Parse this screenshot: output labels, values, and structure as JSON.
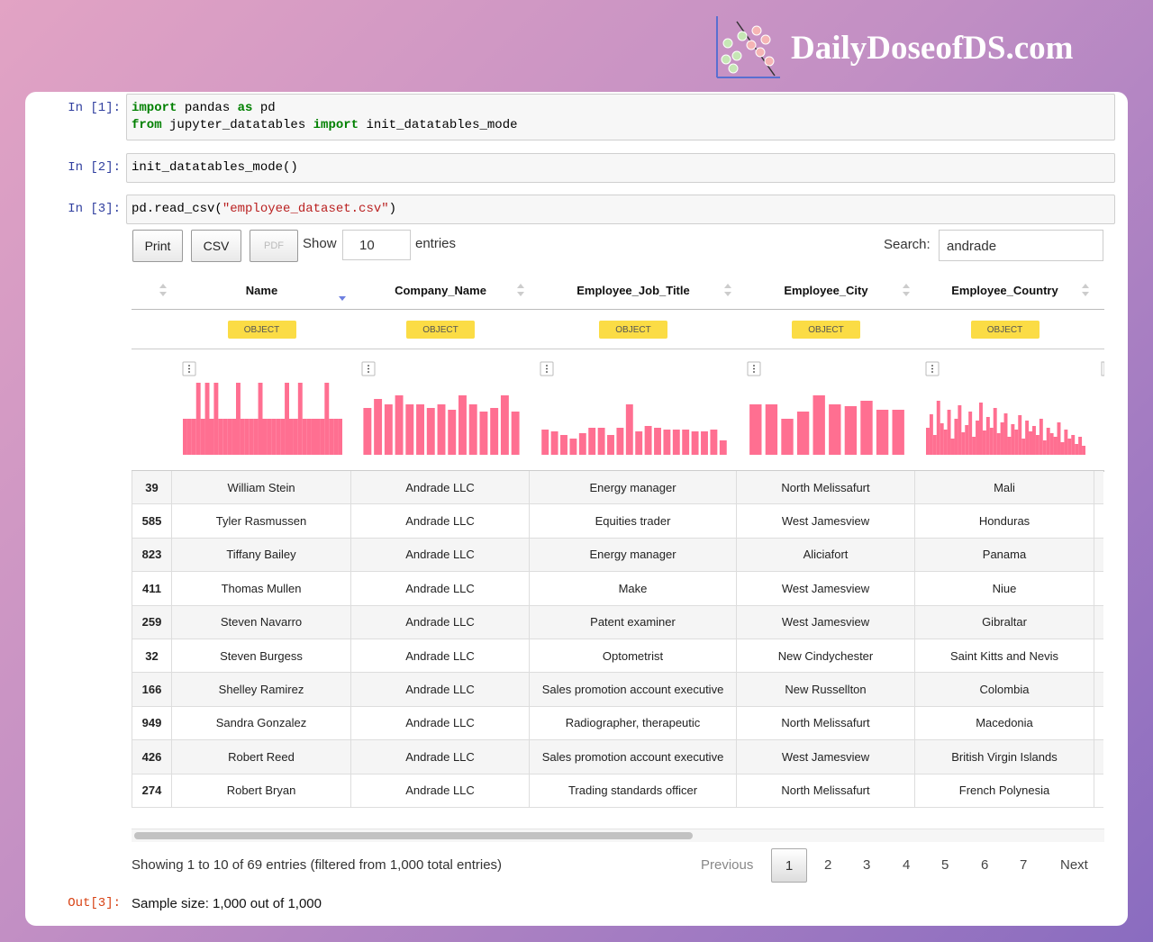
{
  "brand": "DailyDoseofDS.com",
  "cells": [
    {
      "prompt": "In [1]:",
      "lines": [
        [
          {
            "text": "import",
            "style": "keyword"
          },
          {
            "text": " pandas ",
            "style": "plain"
          },
          {
            "text": "as",
            "style": "keyword"
          },
          {
            "text": " pd",
            "style": "plain"
          }
        ],
        [
          {
            "text": "from",
            "style": "keyword"
          },
          {
            "text": " jupyter_datatables ",
            "style": "plain"
          },
          {
            "text": "import",
            "style": "keyword"
          },
          {
            "text": " init_datatables_mode",
            "style": "plain"
          }
        ]
      ]
    },
    {
      "prompt": "In [2]:",
      "lines": [
        [
          {
            "text": "init_datatables_mode()",
            "style": "plain"
          }
        ]
      ]
    },
    {
      "prompt": "In [3]:",
      "lines": [
        [
          {
            "text": "pd.read_csv(",
            "style": "plain"
          },
          {
            "text": "\"employee_dataset.csv\"",
            "style": "string"
          },
          {
            "text": ")",
            "style": "plain"
          }
        ]
      ]
    }
  ],
  "toolbar": {
    "buttons": [
      "Print",
      "CSV",
      "PDF"
    ],
    "show_label": "Show",
    "page_length": "10",
    "entries_label": "entries",
    "search_label": "Search:",
    "search_value": "andrade"
  },
  "table": {
    "columns": [
      "Name",
      "Company_Name",
      "Employee_Job_Title",
      "Employee_City",
      "Employee_Country"
    ],
    "dtypes": [
      "OBJECT",
      "OBJECT",
      "OBJECT",
      "OBJECT",
      "OBJECT"
    ],
    "histograms": [
      [
        40,
        40,
        40,
        80,
        40,
        80,
        40,
        80,
        40,
        40,
        40,
        40,
        80,
        40,
        40,
        40,
        40,
        80,
        40,
        40,
        40,
        40,
        40,
        80,
        40,
        40,
        80,
        40,
        40,
        40,
        40,
        40,
        80,
        40,
        40,
        40
      ],
      [
        52,
        62,
        56,
        66,
        56,
        56,
        52,
        56,
        50,
        66,
        56,
        48,
        52,
        66,
        48
      ],
      [
        28,
        26,
        22,
        18,
        24,
        30,
        30,
        22,
        30,
        56,
        26,
        32,
        30,
        28,
        28,
        28,
        26,
        26,
        28,
        16
      ],
      [
        56,
        56,
        40,
        48,
        66,
        56,
        54,
        60,
        50,
        50
      ],
      [
        30,
        45,
        22,
        60,
        35,
        28,
        50,
        18,
        40,
        55,
        25,
        33,
        48,
        20,
        38,
        58,
        27,
        42,
        30,
        52,
        24,
        36,
        46,
        20,
        34,
        28,
        44,
        18,
        38,
        26,
        32,
        22,
        40,
        16,
        30,
        24,
        20,
        36,
        14,
        28,
        18,
        22,
        12,
        20,
        10
      ]
    ],
    "rows": [
      [
        39,
        "William Stein",
        "Andrade LLC",
        "Energy manager",
        "North Melissafurt",
        "Mali"
      ],
      [
        585,
        "Tyler Rasmussen",
        "Andrade LLC",
        "Equities trader",
        "West Jamesview",
        "Honduras"
      ],
      [
        823,
        "Tiffany Bailey",
        "Andrade LLC",
        "Energy manager",
        "Aliciafort",
        "Panama"
      ],
      [
        411,
        "Thomas Mullen",
        "Andrade LLC",
        "Make",
        "West Jamesview",
        "Niue"
      ],
      [
        259,
        "Steven Navarro",
        "Andrade LLC",
        "Patent examiner",
        "West Jamesview",
        "Gibraltar"
      ],
      [
        32,
        "Steven Burgess",
        "Andrade LLC",
        "Optometrist",
        "New Cindychester",
        "Saint Kitts and Nevis"
      ],
      [
        166,
        "Shelley Ramirez",
        "Andrade LLC",
        "Sales promotion account executive",
        "New Russellton",
        "Colombia"
      ],
      [
        949,
        "Sandra Gonzalez",
        "Andrade LLC",
        "Radiographer, therapeutic",
        "North Melissafurt",
        "Macedonia"
      ],
      [
        426,
        "Robert Reed",
        "Andrade LLC",
        "Sales promotion account executive",
        "West Jamesview",
        "British Virgin Islands"
      ],
      [
        274,
        "Robert Bryan",
        "Andrade LLC",
        "Trading standards officer",
        "North Melissafurt",
        "French Polynesia"
      ]
    ]
  },
  "footer": {
    "info": "Showing 1 to 10 of 69 entries (filtered from 1,000 total entries)",
    "pagination": [
      "Previous",
      "1",
      "2",
      "3",
      "4",
      "5",
      "6",
      "7",
      "Next"
    ],
    "active_page": 1
  },
  "output": {
    "prompt": "Out[3]:",
    "text": "Sample size: 1,000 out of 1,000"
  }
}
